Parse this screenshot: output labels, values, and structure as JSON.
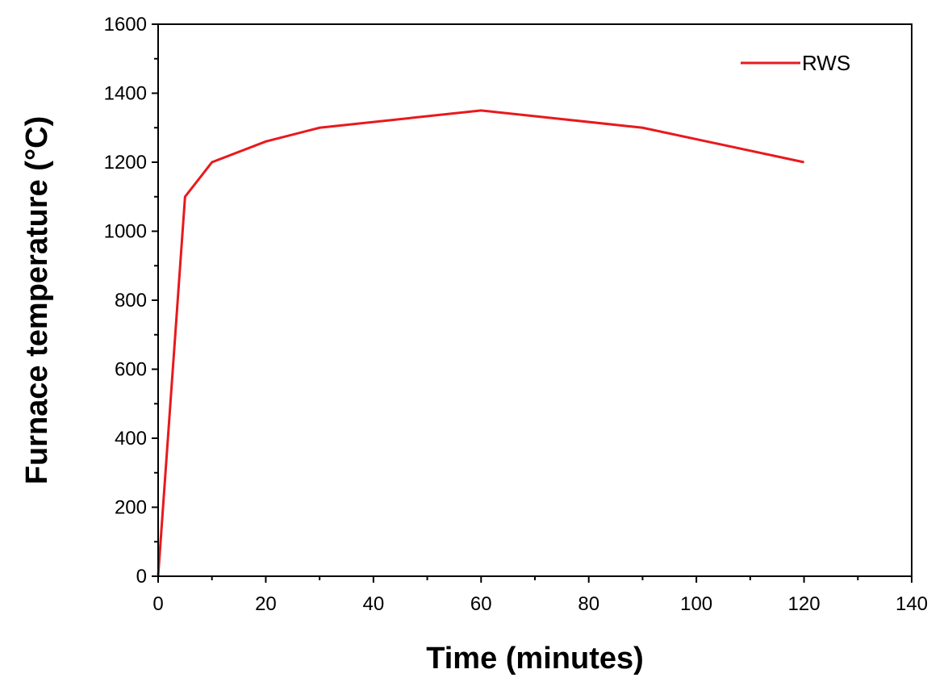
{
  "chart_data": {
    "type": "line",
    "title": "",
    "xlabel": "Time (minutes)",
    "ylabel": "Furnace temperature (°C)",
    "xlim": [
      0,
      140
    ],
    "ylim": [
      0,
      1600
    ],
    "x_ticks": [
      "0",
      "20",
      "40",
      "60",
      "80",
      "100",
      "120",
      "140"
    ],
    "y_ticks": [
      "0",
      "200",
      "400",
      "600",
      "800",
      "1000",
      "1200",
      "1400",
      "1600"
    ],
    "grid": false,
    "legend_position": "top-right",
    "series": [
      {
        "name": "RWS",
        "color": "#e8191c",
        "x": [
          0,
          5,
          10,
          20,
          30,
          60,
          90,
          120
        ],
        "y": [
          0,
          1100,
          1200,
          1260,
          1300,
          1350,
          1300,
          1200
        ]
      }
    ]
  }
}
